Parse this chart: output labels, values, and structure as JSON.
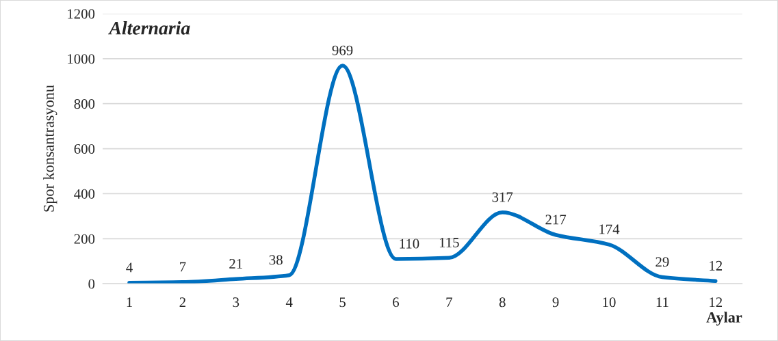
{
  "chart_data": {
    "type": "line",
    "title": "Alternaria",
    "xlabel": "Aylar",
    "ylabel": "Spor konsantrasyonu",
    "categories": [
      "1",
      "2",
      "3",
      "4",
      "5",
      "6",
      "7",
      "8",
      "9",
      "10",
      "11",
      "12"
    ],
    "series": [
      {
        "color": "#0070c0",
        "values": [
          4,
          7,
          21,
          38,
          969,
          110,
          115,
          317,
          217,
          174,
          29,
          12
        ]
      }
    ],
    "ylim": [
      0,
      1200
    ],
    "yticks": [
      0,
      200,
      400,
      600,
      800,
      1000,
      1200
    ],
    "grid": "y",
    "data_labels": true,
    "marker": "none",
    "line_style": "solid"
  }
}
